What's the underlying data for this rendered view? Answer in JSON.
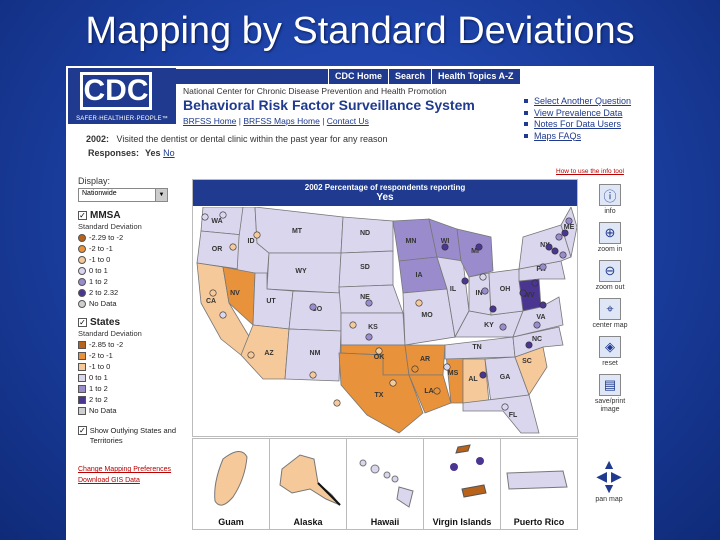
{
  "slide": {
    "title": "Mapping by Standard Deviations"
  },
  "header": {
    "logo": "CDC",
    "tagline": "SAFER·HEALTHIER·PEOPLE™",
    "nav": [
      "CDC Home",
      "Search",
      "Health Topics A-Z"
    ],
    "subtitle": "National Center for Chronic Disease Prevention and Health Promotion",
    "system": "Behavioral Risk Factor Surveillance System",
    "links": [
      "BRFSS Home",
      "BRFSS Maps Home",
      "Contact Us"
    ],
    "right_links": [
      "Select Another Question",
      "View Prevalence Data",
      "Notes For Data Users",
      "Maps FAQs"
    ]
  },
  "question": {
    "year": "2002:",
    "text": "Visited the dentist or dental clinic within the past year for any reason"
  },
  "responses": {
    "label": "Responses:",
    "yes": "Yes",
    "no": "No"
  },
  "howto": "How to use the info tool",
  "panel": {
    "display_label": "Display:",
    "display_value": "Nationwide",
    "mmsa": {
      "label": "MMSA",
      "sd": "Standard Deviation",
      "items": [
        {
          "text": "-2.29 to -2",
          "color": "#b8621a"
        },
        {
          "text": "-2 to -1",
          "color": "#e8923c"
        },
        {
          "text": "-1 to 0",
          "color": "#f6c99a"
        },
        {
          "text": "0 to 1",
          "color": "#d9d6ee"
        },
        {
          "text": "1 to 2",
          "color": "#9a8ccc"
        },
        {
          "text": "2 to 2.32",
          "color": "#4a3590"
        },
        {
          "text": "No Data",
          "color": "#cfcfcf"
        }
      ]
    },
    "states": {
      "label": "States",
      "sd": "Standard Deviation",
      "items": [
        {
          "text": "-2.85 to -2",
          "color": "#b8621a"
        },
        {
          "text": "-2 to -1",
          "color": "#e8923c"
        },
        {
          "text": "-1 to 0",
          "color": "#f6c99a"
        },
        {
          "text": "0 to 1",
          "color": "#d9d6ee"
        },
        {
          "text": "1 to 2",
          "color": "#9a8ccc"
        },
        {
          "text": "2 to 2",
          "color": "#4a3590"
        },
        {
          "text": "No Data",
          "color": "#cfcfcf"
        }
      ]
    },
    "outlying": "Show Outlying States and Territories",
    "change_prefs": "Change Mapping Preferences",
    "download": "Download GIS Data"
  },
  "map": {
    "title": "2002 Percentage of respondents reporting",
    "response": "Yes",
    "states": [
      "WA",
      "OR",
      "CA",
      "ID",
      "NV",
      "MT",
      "WY",
      "UT",
      "AZ",
      "CO",
      "NM",
      "ND",
      "SD",
      "NE",
      "KS",
      "OK",
      "TX",
      "MN",
      "IA",
      "MO",
      "AR",
      "LA",
      "WI",
      "IL",
      "MS",
      "MI",
      "IN",
      "KY",
      "TN",
      "AL",
      "GA",
      "FL",
      "OH",
      "WV",
      "SC",
      "NC",
      "VA",
      "PA",
      "NY",
      "ME"
    ]
  },
  "insets": [
    "Guam",
    "Alaska",
    "Hawaii",
    "Virgin Islands",
    "Puerto Rico"
  ],
  "tools": [
    {
      "icon": "info-icon",
      "label": "info"
    },
    {
      "icon": "zoom-in-icon",
      "label": "zoom in"
    },
    {
      "icon": "zoom-out-icon",
      "label": "zoom out"
    },
    {
      "icon": "center-map-icon",
      "label": "center map"
    },
    {
      "icon": "reset-icon",
      "label": "reset"
    },
    {
      "icon": "save-icon",
      "label": "save/print image"
    }
  ],
  "pan": "pan map"
}
